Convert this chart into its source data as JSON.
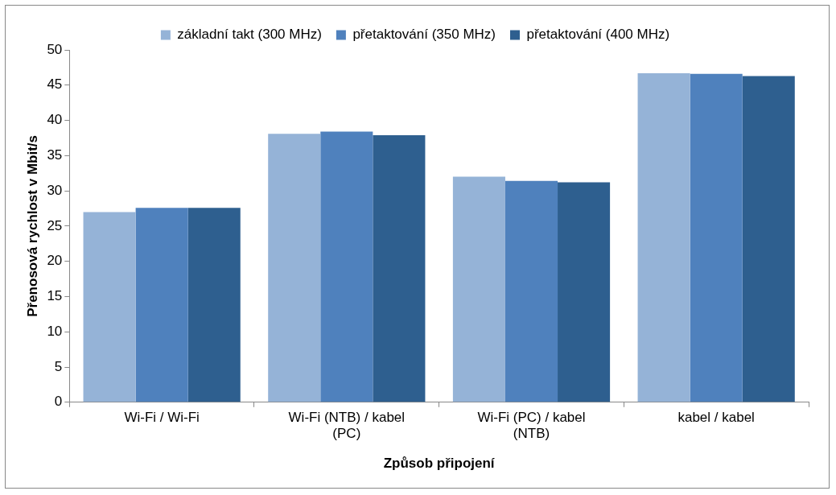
{
  "chart_data": {
    "type": "bar",
    "xlabel": "Způsob připojení",
    "ylabel": "Přenosová rychlost v Mbit/s",
    "categories": [
      "Wi-Fi / Wi-Fi",
      "Wi-Fi (NTB) / kabel (PC)",
      "Wi-Fi (PC) / kabel (NTB)",
      "kabel / kabel"
    ],
    "series": [
      {
        "name": "základní takt (300 MHz)",
        "color": "#95b3d7",
        "values": [
          27.0,
          38.1,
          32.0,
          46.7
        ]
      },
      {
        "name": "přetaktování (350 MHz)",
        "color": "#4f81bd",
        "values": [
          27.6,
          38.4,
          31.4,
          46.6
        ]
      },
      {
        "name": "přetaktování (400 MHz)",
        "color": "#2e5f8f",
        "values": [
          27.6,
          37.9,
          31.2,
          46.3
        ]
      }
    ],
    "ylim": [
      0,
      50
    ],
    "yticks": [
      0,
      5,
      10,
      15,
      20,
      25,
      30,
      35,
      40,
      45,
      50
    ],
    "grid": false,
    "legend": "top"
  }
}
